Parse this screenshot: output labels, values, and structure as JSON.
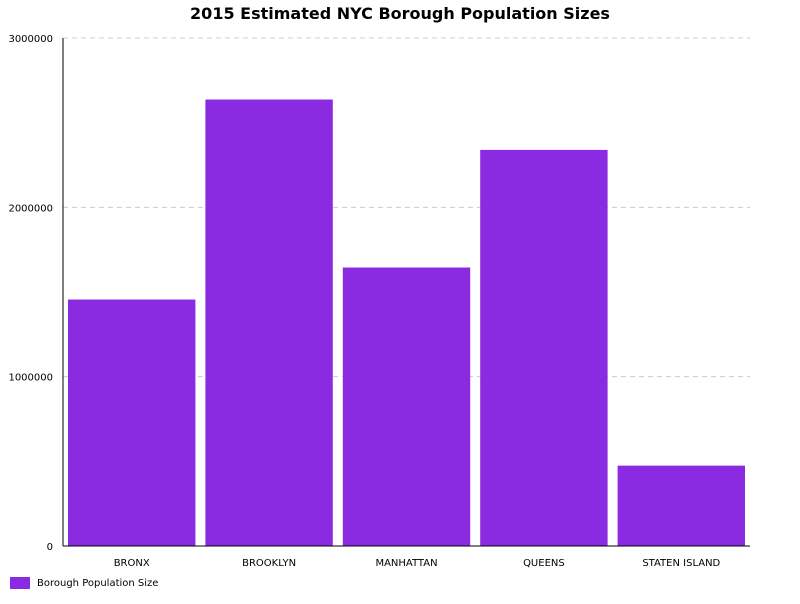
{
  "chart_data": {
    "type": "bar",
    "title": "2015 Estimated NYC Borough Population Sizes",
    "xlabel": "",
    "ylabel": "",
    "categories": [
      "BRONX",
      "BROOKLYN",
      "MANHATTAN",
      "QUEENS",
      "STATEN ISLAND"
    ],
    "series": [
      {
        "name": "Borough Population Size",
        "values": [
          1455444,
          2636735,
          1644518,
          2339150,
          474558
        ]
      }
    ],
    "ylim": [
      0,
      3000000
    ],
    "yticks": [
      "0",
      "1000000",
      "2000000",
      "3000000"
    ],
    "grid": true,
    "legend_position": "bottom-left",
    "colors": {
      "bar": "#8a2be2",
      "axis": "#000000",
      "grid": "#cccccc"
    }
  },
  "legend": {
    "label": "Borough Population Size"
  }
}
